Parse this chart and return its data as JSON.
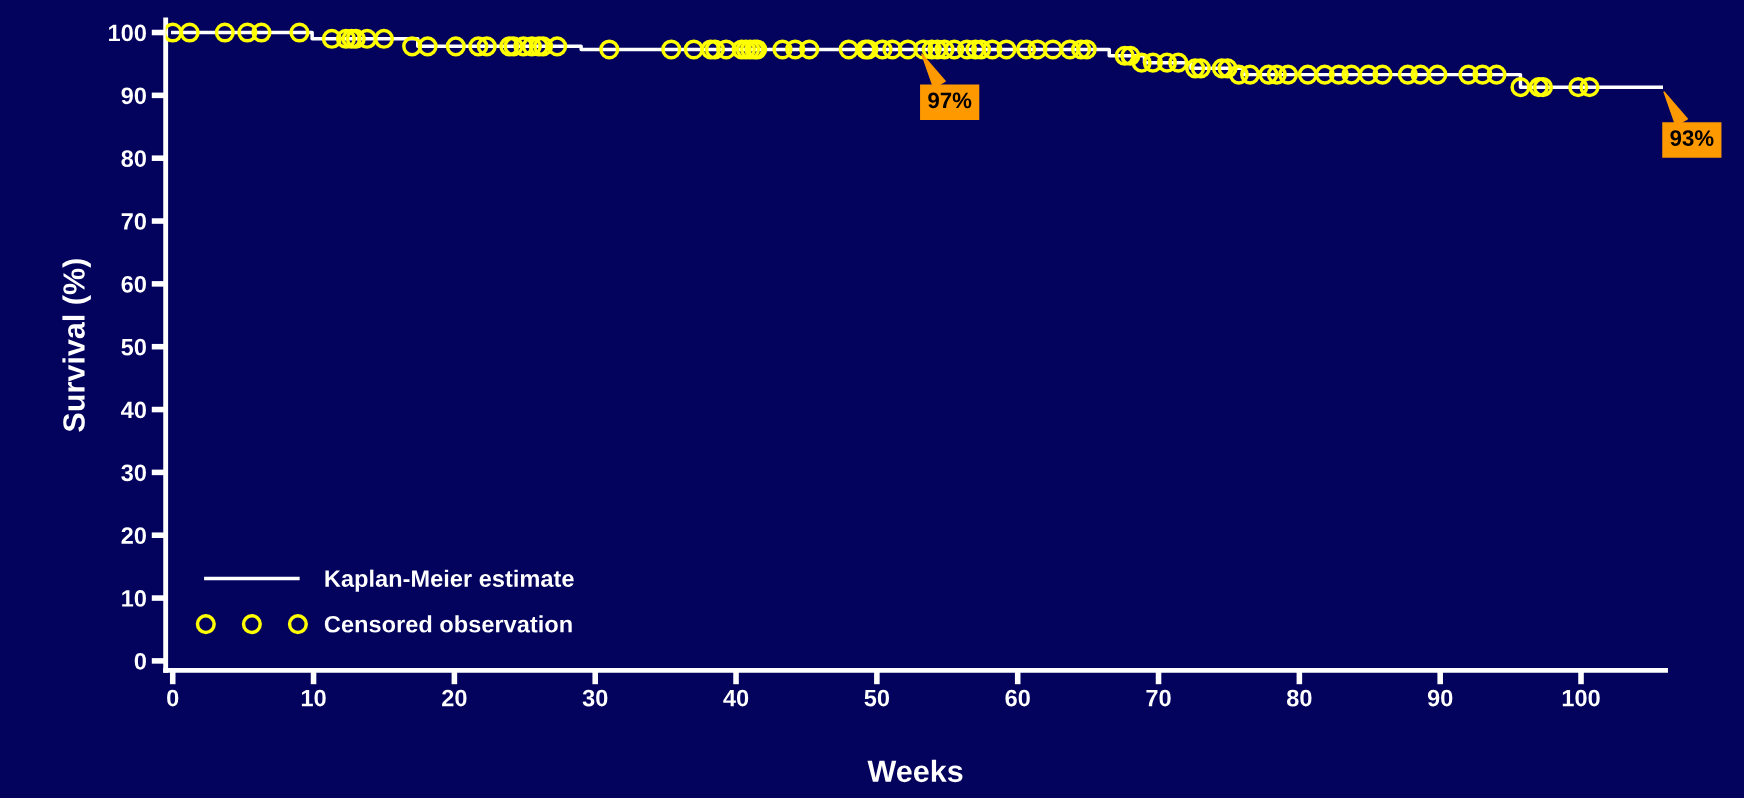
{
  "chart_data": {
    "type": "step",
    "xlabel": "Weeks",
    "ylabel": "Survival (%)",
    "xlim": [
      -0.5,
      106
    ],
    "xticks": [
      0,
      10,
      20,
      30,
      40,
      50,
      60,
      70,
      80,
      90,
      100
    ],
    "ylim": [
      -1.5,
      102
    ],
    "yticks": [
      0,
      10,
      20,
      30,
      40,
      50,
      60,
      70,
      80,
      90,
      100
    ],
    "grid": false,
    "legend": "bottom left",
    "series": [
      {
        "name": "Kaplan-Meier estimate",
        "color": "#ffffff",
        "marker": "none",
        "x": [
          0,
          9.9,
          17.4,
          29,
          66.5,
          69,
          72.3,
          76,
          95.7,
          105.7
        ],
        "values": [
          100,
          99,
          97.8,
          97.3,
          96.3,
          95.2,
          94.3,
          93.3,
          91.3,
          91.3
        ]
      },
      {
        "name": "Censored observation",
        "type": "scatter",
        "color": "#ffff00",
        "marker": "circle",
        "x": [
          0,
          1.2,
          3.7,
          5.3,
          6.3,
          9.0,
          11.3,
          12.3,
          12.7,
          13.0,
          13.8,
          15.0,
          17.0,
          18.1,
          20.1,
          21.7,
          22.3,
          23.9,
          24.2,
          24.9,
          25.5,
          26.0,
          26.3,
          27.3,
          31.0,
          35.4,
          37.0,
          38.2,
          38.5,
          39.3,
          40.4,
          40.7,
          41.0,
          41.3,
          41.5,
          43.3,
          44.2,
          45.2,
          48.0,
          49.2,
          49.4,
          50.4,
          51.1,
          52.2,
          53.3,
          53.9,
          54.3,
          54.8,
          55.5,
          56.4,
          57.0,
          57.4,
          58.2,
          59.2,
          60.6,
          61.4,
          62.5,
          63.7,
          64.5,
          64.9,
          67.6,
          68.0,
          68.8,
          69.6,
          70.6,
          71.4,
          72.6,
          73.0,
          74.5,
          74.9,
          75.7,
          76.5,
          77.8,
          78.4,
          79.2,
          80.6,
          81.8,
          82.8,
          83.7,
          84.9,
          85.9,
          87.7,
          88.6,
          89.8,
          92.0,
          93.0,
          94.0,
          95.7,
          97.0,
          97.3,
          99.8,
          100.6
        ],
        "values": [
          100,
          100,
          100,
          100,
          100,
          100,
          99,
          99,
          99,
          99,
          99,
          99,
          97.8,
          97.8,
          97.8,
          97.8,
          97.8,
          97.8,
          97.8,
          97.8,
          97.8,
          97.8,
          97.8,
          97.8,
          97.3,
          97.3,
          97.3,
          97.3,
          97.3,
          97.3,
          97.3,
          97.3,
          97.3,
          97.3,
          97.3,
          97.3,
          97.3,
          97.3,
          97.3,
          97.3,
          97.3,
          97.3,
          97.3,
          97.3,
          97.3,
          97.3,
          97.3,
          97.3,
          97.3,
          97.3,
          97.3,
          97.3,
          97.3,
          97.3,
          97.3,
          97.3,
          97.3,
          97.3,
          97.3,
          97.3,
          96.3,
          96.3,
          95.2,
          95.2,
          95.2,
          95.2,
          94.3,
          94.3,
          94.3,
          94.3,
          93.3,
          93.3,
          93.3,
          93.3,
          93.3,
          93.3,
          93.3,
          93.3,
          93.3,
          93.3,
          93.3,
          93.3,
          93.3,
          93.3,
          93.3,
          93.3,
          93.3,
          91.3,
          91.3,
          91.3,
          91.3,
          91.3
        ]
      }
    ],
    "annotations": [
      {
        "text": "97%",
        "x": 53,
        "y": 97.3
      },
      {
        "text": "93%",
        "x": 105.7,
        "y": 91.3
      }
    ]
  }
}
